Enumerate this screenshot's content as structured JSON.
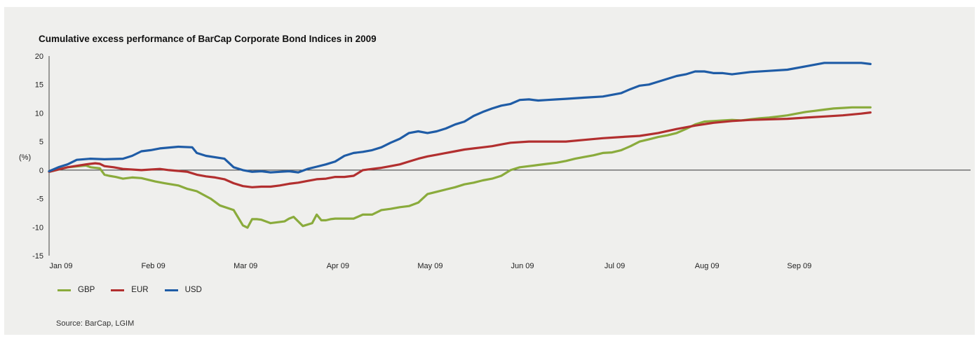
{
  "chart_data": {
    "type": "line",
    "title": "Cumulative excess performance of BarCap Corporate Bond Indices in 2009",
    "ylabel": "(%)",
    "xlabel": "",
    "ylim": [
      -15,
      20
    ],
    "yticks": [
      "20",
      "15",
      "10",
      "5",
      "0",
      "-5",
      "-10",
      "-15"
    ],
    "ytick_values": [
      20,
      15,
      10,
      5,
      0,
      -5,
      -10,
      -15
    ],
    "xlim": [
      0,
      8.9
    ],
    "x_ticks": [
      "Jan 09",
      "Feb 09",
      "Mar 09",
      "Apr 09",
      "May 09",
      "Jun 09",
      "Jul 09",
      "Aug 09",
      "Sep 09"
    ],
    "x_unit": "months since start of 2009",
    "grid": false,
    "legend_position": "bottom-left",
    "series": [
      {
        "name": "GBP",
        "color": "#8aab3c",
        "x": [
          0,
          0.2,
          0.4,
          0.45,
          0.55,
          0.6,
          0.65,
          0.72,
          0.8,
          0.9,
          1.0,
          1.15,
          1.25,
          1.4,
          1.5,
          1.6,
          1.75,
          1.85,
          2.0,
          2.1,
          2.15,
          2.2,
          2.25,
          2.3,
          2.4,
          2.55,
          2.6,
          2.65,
          2.75,
          2.85,
          2.9,
          2.95,
          3.0,
          3.05,
          3.1,
          3.2,
          3.3,
          3.4,
          3.5,
          3.6,
          3.7,
          3.8,
          3.9,
          4.0,
          4.1,
          4.2,
          4.3,
          4.4,
          4.5,
          4.6,
          4.7,
          4.8,
          4.9,
          5.0,
          5.1,
          5.2,
          5.3,
          5.4,
          5.5,
          5.6,
          5.7,
          5.8,
          5.9,
          6.0,
          6.1,
          6.2,
          6.3,
          6.4,
          6.5,
          6.6,
          6.7,
          6.8,
          6.9,
          7.0,
          7.1,
          7.2,
          7.3,
          7.4,
          7.5,
          7.6,
          7.7,
          7.8,
          7.9,
          8.0,
          8.1,
          8.2,
          8.3,
          8.4,
          8.5,
          8.6,
          8.7,
          8.8,
          8.9
        ],
        "values": [
          -0.3,
          0.5,
          0.8,
          0.5,
          0.3,
          -0.8,
          -1.0,
          -1.2,
          -1.5,
          -1.3,
          -1.4,
          -2.0,
          -2.3,
          -2.7,
          -3.3,
          -3.7,
          -5.0,
          -6.2,
          -7.0,
          -9.7,
          -10.1,
          -8.6,
          -8.6,
          -8.7,
          -9.3,
          -9.0,
          -8.5,
          -8.2,
          -9.8,
          -9.3,
          -7.8,
          -8.8,
          -8.8,
          -8.6,
          -8.5,
          -8.5,
          -8.5,
          -7.8,
          -7.8,
          -7.0,
          -6.8,
          -6.5,
          -6.3,
          -5.7,
          -4.2,
          -3.8,
          -3.4,
          -3.0,
          -2.5,
          -2.2,
          -1.8,
          -1.5,
          -1.0,
          0.0,
          0.5,
          0.7,
          0.9,
          1.1,
          1.3,
          1.6,
          2.0,
          2.3,
          2.6,
          3.0,
          3.1,
          3.5,
          4.2,
          5.0,
          5.4,
          5.8,
          6.1,
          6.5,
          7.2,
          8.0,
          8.5,
          8.6,
          8.7,
          8.8,
          8.7,
          8.9,
          9.1,
          9.2,
          9.4,
          9.6,
          9.9,
          10.2,
          10.4,
          10.6,
          10.8,
          10.9,
          11.0,
          11.0,
          11.0
        ]
      },
      {
        "name": "EUR",
        "color": "#b22f2f",
        "x": [
          0,
          0.2,
          0.4,
          0.5,
          0.55,
          0.6,
          0.7,
          0.8,
          1.0,
          1.2,
          1.3,
          1.5,
          1.6,
          1.7,
          1.8,
          1.9,
          2.0,
          2.1,
          2.2,
          2.3,
          2.4,
          2.5,
          2.6,
          2.7,
          2.8,
          2.9,
          3.0,
          3.1,
          3.2,
          3.3,
          3.4,
          3.5,
          3.6,
          3.7,
          3.8,
          3.9,
          4.0,
          4.1,
          4.2,
          4.3,
          4.4,
          4.5,
          4.6,
          4.7,
          4.8,
          4.9,
          5.0,
          5.2,
          5.4,
          5.6,
          5.8,
          6.0,
          6.2,
          6.4,
          6.6,
          6.8,
          7.0,
          7.2,
          7.4,
          7.6,
          7.8,
          8.0,
          8.2,
          8.4,
          8.6,
          8.8,
          8.9
        ],
        "values": [
          -0.3,
          0.5,
          1.0,
          1.2,
          1.1,
          0.7,
          0.5,
          0.2,
          0.0,
          0.2,
          0.0,
          -0.3,
          -0.8,
          -1.1,
          -1.3,
          -1.6,
          -2.3,
          -2.8,
          -3.0,
          -2.9,
          -2.9,
          -2.7,
          -2.4,
          -2.2,
          -1.9,
          -1.6,
          -1.5,
          -1.2,
          -1.2,
          -1.0,
          0.0,
          0.2,
          0.4,
          0.7,
          1.0,
          1.5,
          2.0,
          2.4,
          2.7,
          3.0,
          3.3,
          3.6,
          3.8,
          4.0,
          4.2,
          4.5,
          4.8,
          5.0,
          5.0,
          5.0,
          5.3,
          5.6,
          5.8,
          6.0,
          6.5,
          7.2,
          7.8,
          8.3,
          8.6,
          8.8,
          8.9,
          9.0,
          9.2,
          9.4,
          9.6,
          9.9,
          10.1
        ]
      },
      {
        "name": "USD",
        "color": "#1f5ca6",
        "x": [
          0,
          0.1,
          0.2,
          0.3,
          0.45,
          0.6,
          0.8,
          0.9,
          1.0,
          1.1,
          1.2,
          1.4,
          1.55,
          1.6,
          1.7,
          1.9,
          2.0,
          2.1,
          2.2,
          2.3,
          2.4,
          2.5,
          2.6,
          2.7,
          2.8,
          2.9,
          3.0,
          3.1,
          3.2,
          3.3,
          3.4,
          3.5,
          3.6,
          3.7,
          3.8,
          3.9,
          4.0,
          4.1,
          4.2,
          4.3,
          4.4,
          4.5,
          4.6,
          4.7,
          4.8,
          4.9,
          5.0,
          5.1,
          5.2,
          5.3,
          5.4,
          5.5,
          5.6,
          5.8,
          6.0,
          6.2,
          6.3,
          6.4,
          6.5,
          6.6,
          6.8,
          6.9,
          7.0,
          7.1,
          7.2,
          7.3,
          7.4,
          7.5,
          7.6,
          7.8,
          8.0,
          8.2,
          8.4,
          8.6,
          8.8,
          8.9
        ],
        "values": [
          -0.2,
          0.5,
          1.0,
          1.8,
          2.0,
          1.9,
          2.0,
          2.5,
          3.3,
          3.5,
          3.8,
          4.1,
          4.0,
          3.0,
          2.5,
          2.0,
          0.5,
          0.0,
          -0.3,
          -0.2,
          -0.4,
          -0.3,
          -0.2,
          -0.4,
          0.2,
          0.6,
          1.0,
          1.5,
          2.5,
          3.0,
          3.2,
          3.5,
          4.0,
          4.8,
          5.5,
          6.5,
          6.8,
          6.5,
          6.8,
          7.3,
          8.0,
          8.5,
          9.5,
          10.2,
          10.8,
          11.3,
          11.6,
          12.3,
          12.4,
          12.2,
          12.3,
          12.4,
          12.5,
          12.7,
          12.9,
          13.5,
          14.2,
          14.8,
          15.0,
          15.5,
          16.5,
          16.8,
          17.3,
          17.3,
          17.0,
          17.0,
          16.8,
          17.0,
          17.2,
          17.4,
          17.6,
          18.2,
          18.8,
          18.8,
          18.8,
          18.6
        ]
      }
    ]
  },
  "source": "Source: BarCap, LGIM"
}
